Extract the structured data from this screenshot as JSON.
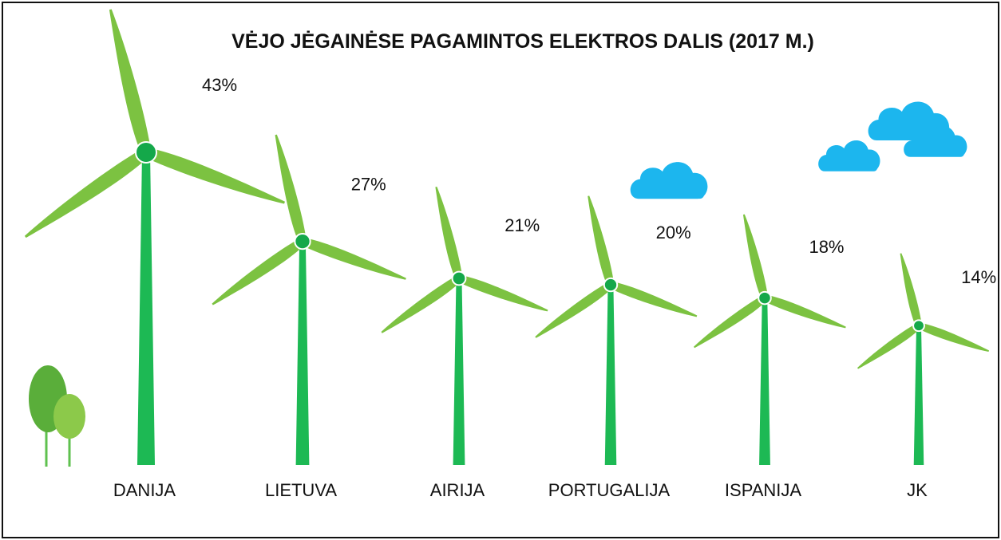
{
  "chart_data": {
    "type": "bar",
    "title": "VĖJO JĖGAINĖSE PAGAMINTOS ELEKTROS DALIS (2017 M.)",
    "categories": [
      "DANIJA",
      "LIETUVA",
      "AIRIJA",
      "PORTUGALIJA",
      "ISPANIJA",
      "JK"
    ],
    "values": [
      43,
      27,
      21,
      20,
      18,
      14
    ],
    "value_labels": [
      "43%",
      "27%",
      "21%",
      "20%",
      "18%",
      "14%"
    ],
    "unit": "%",
    "grid": false,
    "legend": "none"
  },
  "colors": {
    "tower": "#1db954",
    "blade": "#7cc241",
    "hub": "#14a84a",
    "cloud": "#1cb6ee",
    "tree_dark": "#5aae3a",
    "tree_light": "#8cc94a",
    "trunk": "#5fc14f"
  },
  "decor": {
    "icons": [
      "wind-turbine-icon",
      "cloud-icon",
      "tree-icon"
    ]
  }
}
